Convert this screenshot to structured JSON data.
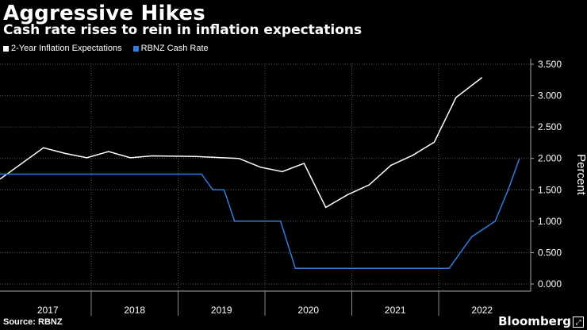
{
  "title": "Aggressive Hikes",
  "subtitle": "Cash rate rises to rein in inflation expectations",
  "source": "Source: RBNZ",
  "brand": "Bloomberg",
  "chart_data": {
    "type": "line",
    "ylabel": "Percent",
    "ylim": [
      0,
      3.5
    ],
    "yticks": [
      "0.000",
      "0.500",
      "1.000",
      "1.500",
      "2.000",
      "2.500",
      "3.000",
      "3.500"
    ],
    "xlim": [
      2016.45,
      2022.55
    ],
    "year_labels": [
      "2017",
      "2018",
      "2019",
      "2020",
      "2021",
      "2022"
    ],
    "year_boundaries": [
      2017.5,
      2018.5,
      2019.5,
      2020.5,
      2021.5
    ],
    "year_centers": [
      2017.0,
      2018.0,
      2019.0,
      2020.0,
      2021.0,
      2022.0
    ],
    "legend_position": "top-left",
    "grid": true,
    "series": [
      {
        "name": "2-Year Inflation Expectations",
        "color": "#ffffff",
        "points": [
          [
            2016.45,
            1.67
          ],
          [
            2016.95,
            2.17
          ],
          [
            2017.2,
            2.08
          ],
          [
            2017.45,
            2.01
          ],
          [
            2017.7,
            2.11
          ],
          [
            2017.95,
            2.01
          ],
          [
            2018.2,
            2.04
          ],
          [
            2018.7,
            2.03
          ],
          [
            2019.2,
            2.0
          ],
          [
            2019.45,
            1.86
          ],
          [
            2019.7,
            1.79
          ],
          [
            2019.95,
            1.92
          ],
          [
            2020.2,
            1.22
          ],
          [
            2020.45,
            1.42
          ],
          [
            2020.7,
            1.58
          ],
          [
            2020.95,
            1.89
          ],
          [
            2021.2,
            2.05
          ],
          [
            2021.45,
            2.26
          ],
          [
            2021.7,
            2.97
          ],
          [
            2022.0,
            3.29
          ]
        ]
      },
      {
        "name": "RBNZ Cash Rate",
        "color": "#2f7dde",
        "points": [
          [
            2016.45,
            1.75
          ],
          [
            2018.77,
            1.75
          ],
          [
            2018.9,
            1.5
          ],
          [
            2019.03,
            1.5
          ],
          [
            2019.15,
            1.0
          ],
          [
            2019.68,
            1.0
          ],
          [
            2019.85,
            0.25
          ],
          [
            2021.62,
            0.25
          ],
          [
            2021.88,
            0.75
          ],
          [
            2022.15,
            1.0
          ],
          [
            2022.3,
            1.5
          ],
          [
            2022.43,
            2.0
          ]
        ]
      }
    ]
  }
}
